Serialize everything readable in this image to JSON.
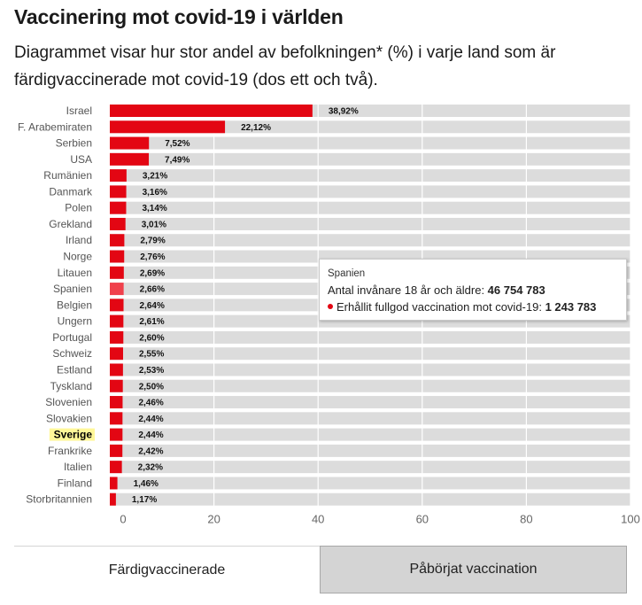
{
  "title": "Vaccinering mot covid-19 i världen",
  "subtitle": "Diagrammet visar hur stor andel av befolkningen* (%) i varje land som är färdigvaccinerade mot covid-19 (dos ett och två).",
  "chart_data": {
    "type": "bar",
    "orientation": "horizontal",
    "categories": [
      "Israel",
      "F. Arabemiraten",
      "Serbien",
      "USA",
      "Rumänien",
      "Danmark",
      "Polen",
      "Grekland",
      "Irland",
      "Norge",
      "Litauen",
      "Spanien",
      "Belgien",
      "Ungern",
      "Portugal",
      "Schweiz",
      "Estland",
      "Tyskland",
      "Slovenien",
      "Slovakien",
      "Sverige",
      "Frankrike",
      "Italien",
      "Finland",
      "Storbritannien"
    ],
    "values": [
      38.92,
      22.12,
      7.52,
      7.49,
      3.21,
      3.16,
      3.14,
      3.01,
      2.79,
      2.76,
      2.69,
      2.66,
      2.64,
      2.61,
      2.6,
      2.55,
      2.53,
      2.5,
      2.46,
      2.44,
      2.44,
      2.42,
      2.32,
      1.46,
      1.17
    ],
    "value_labels": [
      "38,92%",
      "22,12%",
      "7,52%",
      "7,49%",
      "3,21%",
      "3,16%",
      "3,14%",
      "3,01%",
      "2,79%",
      "2,76%",
      "2,69%",
      "2,66%",
      "2,64%",
      "2,61%",
      "2,60%",
      "2,55%",
      "2,53%",
      "2,50%",
      "2,46%",
      "2,44%",
      "2,44%",
      "2,42%",
      "2,32%",
      "1,46%",
      "1,17%"
    ],
    "highlighted_category": "Sverige",
    "hovered_category": "Spanien",
    "xlim": [
      0,
      100
    ],
    "xticks": [
      0,
      20,
      40,
      60,
      80,
      100
    ],
    "grid": true,
    "colors": {
      "bar": "#e30613",
      "bar_hover": "#f0414c",
      "track": "#dcdcdc",
      "highlight_label_bg": "#fff799"
    }
  },
  "tooltip": {
    "country": "Spanien",
    "population_label": "Antal invånare 18 år och äldre: ",
    "population_value": "46 754 783",
    "vaccinated_label": "Erhållit fullgod vaccination mot covid-19: ",
    "vaccinated_value": "1 243 783"
  },
  "toggles": {
    "active_label": "Färdigvaccinerade",
    "inactive_label": "Påbörjat vaccination"
  }
}
